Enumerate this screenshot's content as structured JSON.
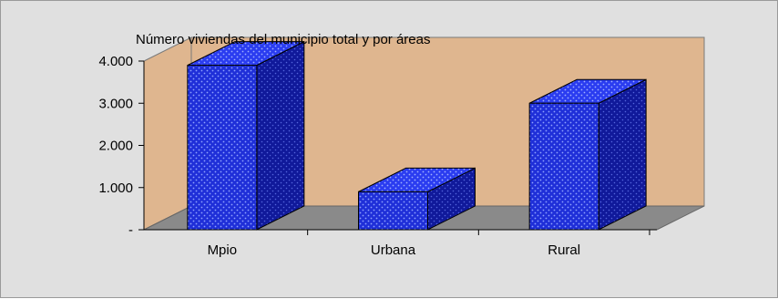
{
  "chart_data": {
    "type": "bar",
    "title": "Número viviendas del municipio total y por áreas",
    "categories": [
      "Mpio",
      "Urbana",
      "Rural"
    ],
    "values": [
      3900,
      900,
      3000
    ],
    "ylim": [
      0,
      4000
    ],
    "yticks": [
      0,
      1000,
      2000,
      3000,
      4000
    ],
    "ytick_labels": [
      "-",
      "1.000",
      "2.000",
      "3.000",
      "4.000"
    ],
    "xlabel": "",
    "ylabel": "",
    "legend": "none",
    "style": "3d",
    "colors": {
      "bar": "#1f2fd8",
      "bar_side": "#10199a",
      "bar_top": "#2a3cf0",
      "back_wall": "#dfb68f",
      "floor": "#8a8a8a",
      "background": "#e0e0e0"
    }
  }
}
